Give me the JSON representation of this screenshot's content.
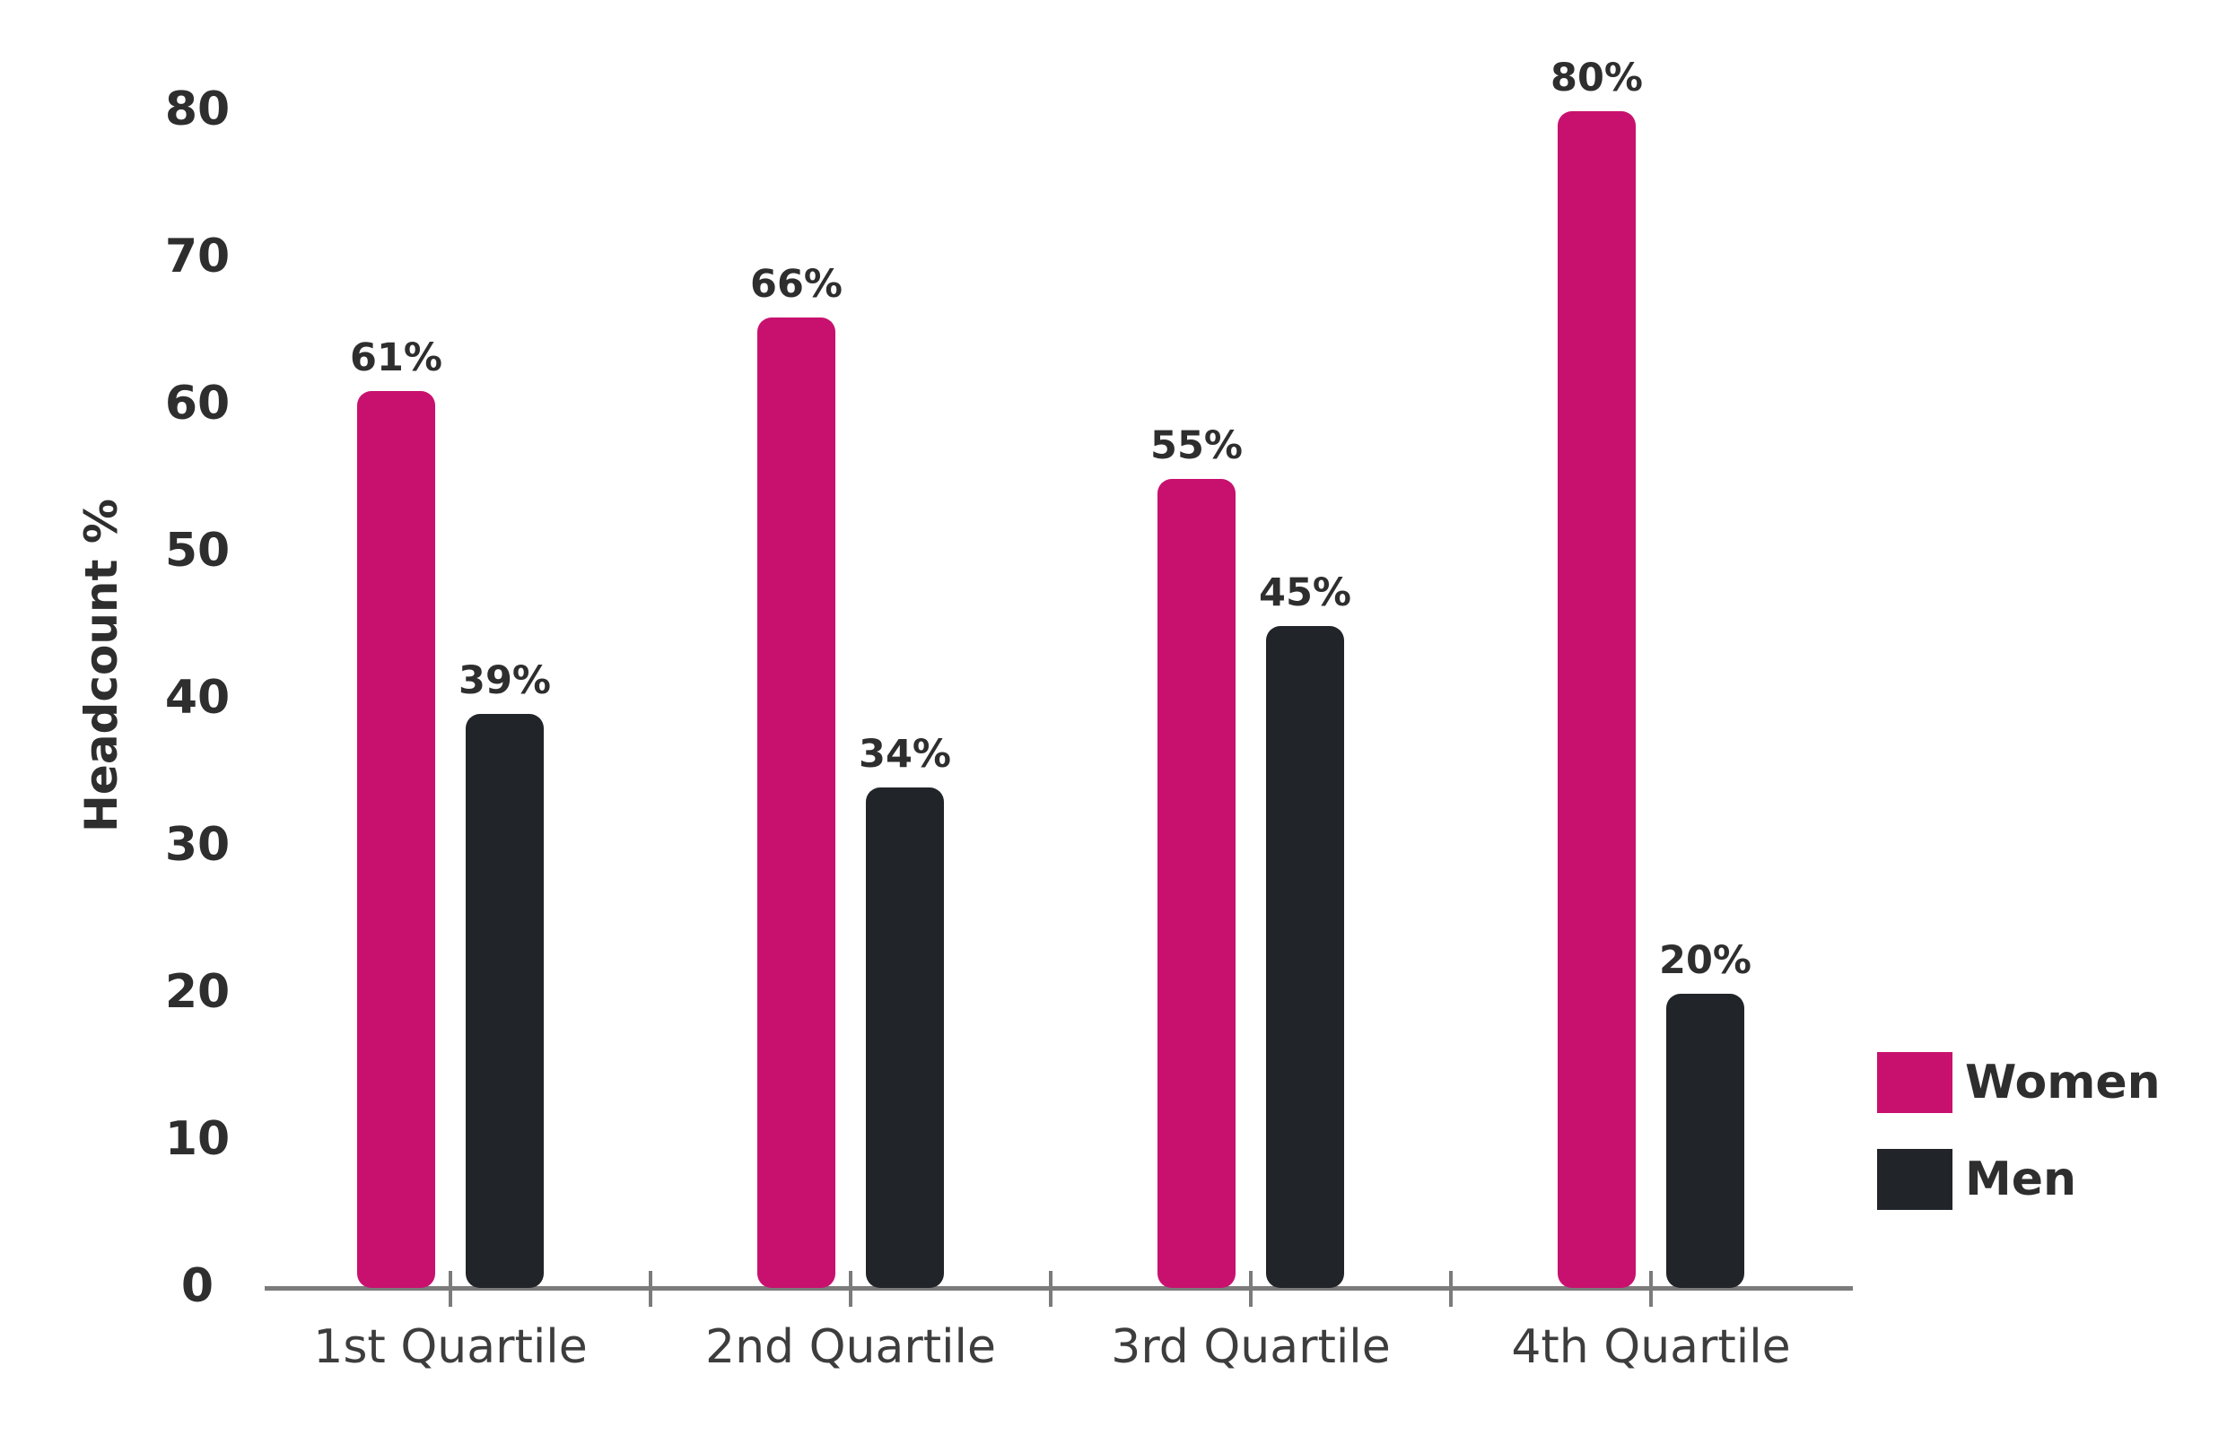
{
  "chart_data": {
    "type": "bar",
    "title": "",
    "categories": [
      "1st Quartile",
      "2nd Quartile",
      "3rd Quartile",
      "4th Quartile"
    ],
    "series": [
      {
        "name": "Women",
        "color": "#C8116F",
        "values": [
          61,
          66,
          55,
          80
        ],
        "labels": [
          "61%",
          "66%",
          "55%",
          "80%"
        ]
      },
      {
        "name": "Men",
        "color": "#212429",
        "values": [
          39,
          34,
          45,
          20
        ],
        "labels": [
          "39%",
          "34%",
          "45%",
          "20%"
        ]
      }
    ],
    "xlabel": "",
    "ylabel": "Headcount %",
    "y_ticks": [
      "0",
      "10",
      "20",
      "30",
      "40",
      "50",
      "60",
      "70",
      "80"
    ],
    "ylim": [
      0,
      80
    ],
    "grid": false,
    "legend_position": "right",
    "legend": [
      "Women",
      "Men"
    ]
  },
  "colors": {
    "women_bar": "#C8116F",
    "men_bar": "#212429",
    "axis": "#7B7B7B",
    "value_text": "#2E2E2E",
    "category_text": "#3D3D3D",
    "background": "#FFFFFF"
  }
}
